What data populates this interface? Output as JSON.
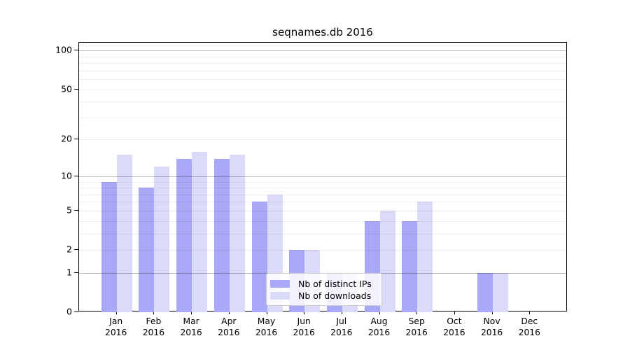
{
  "chart_data": {
    "type": "bar",
    "title": "seqnames.db 2016",
    "categories": [
      "Jan",
      "Feb",
      "Mar",
      "Apr",
      "May",
      "Jun",
      "Jul",
      "Aug",
      "Sep",
      "Oct",
      "Nov",
      "Dec"
    ],
    "year_label": "2016",
    "series": [
      {
        "name": "Nb of distinct IPs",
        "color": "#a8a8f6",
        "values": [
          9,
          8,
          14,
          14,
          6,
          2,
          1,
          4,
          4,
          0,
          1,
          0
        ]
      },
      {
        "name": "Nb of downloads",
        "color": "#dadaf9",
        "values": [
          15,
          12,
          16,
          15,
          7,
          2,
          1,
          5,
          6,
          0,
          1,
          0
        ]
      }
    ],
    "yscale": "log1p",
    "yticks": [
      0,
      1,
      2,
      5,
      10,
      20,
      50,
      100
    ],
    "ylim": [
      0,
      115
    ],
    "grid": true,
    "legend_position": "lower-center"
  },
  "colors": {
    "grid_minor": "rgba(0,0,0,0.07)",
    "grid_major": "rgba(0,0,0,0.28)",
    "axis": "#000000",
    "text": "#000000",
    "legend_border": "#cccccc"
  }
}
